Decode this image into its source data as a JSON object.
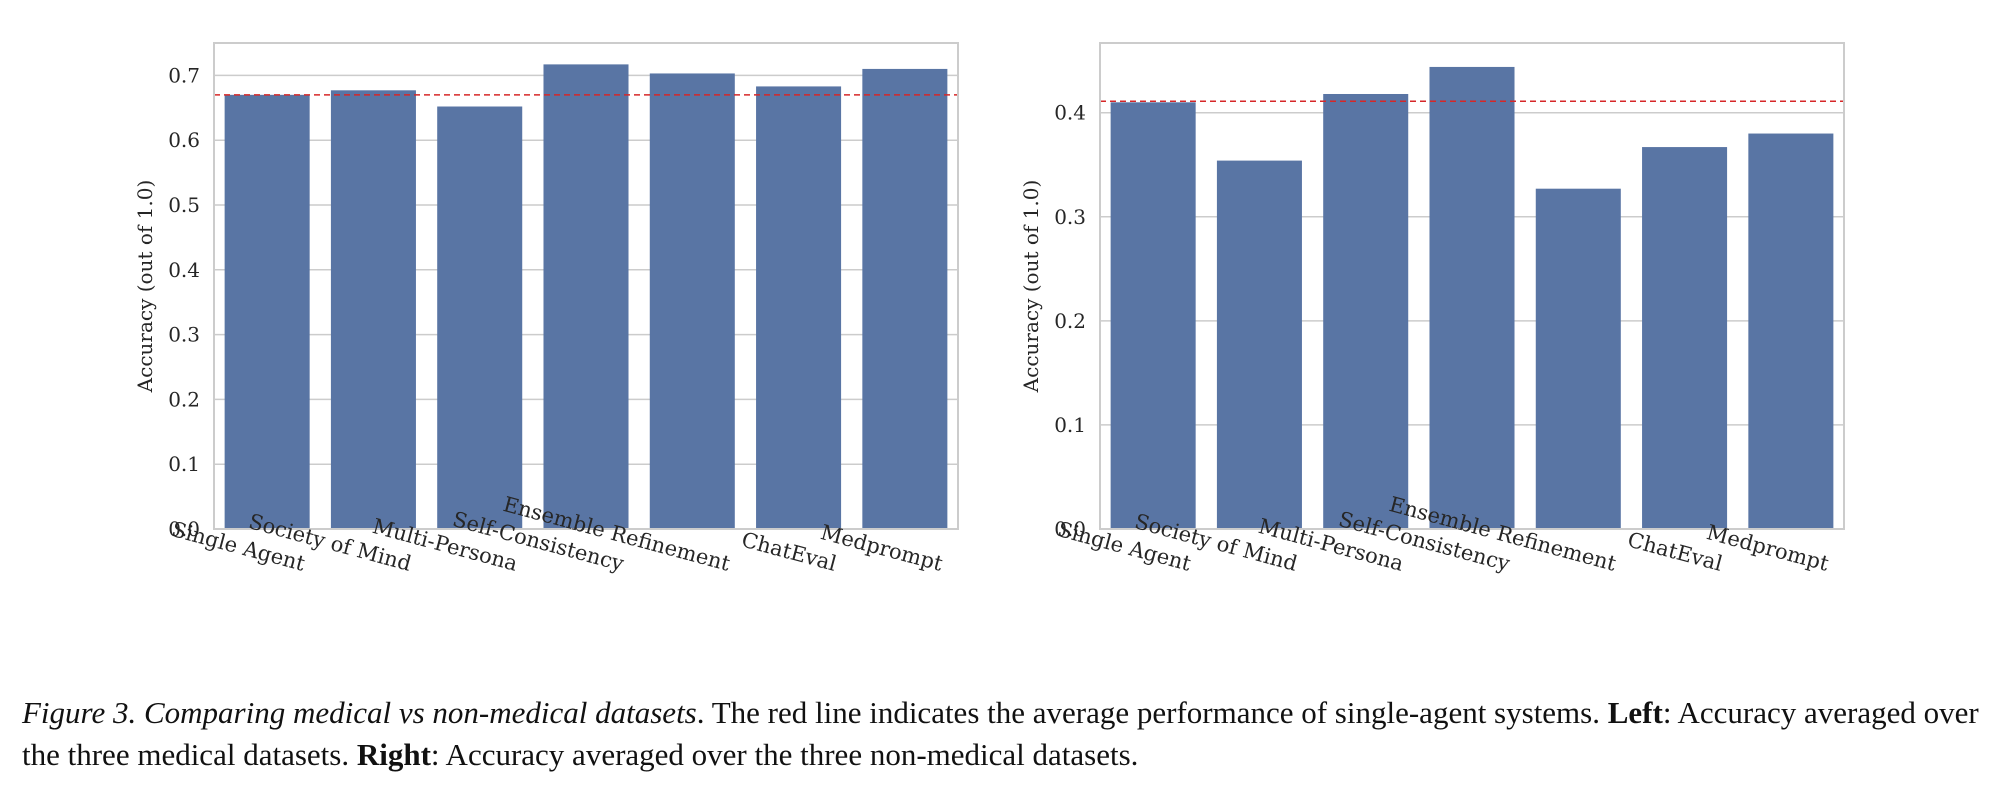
{
  "chart_data": [
    {
      "type": "bar",
      "panel": "Left",
      "categories": [
        "Single Agent",
        "Society of Mind",
        "Multi-Persona",
        "Self-Consistency",
        "Ensemble Refinement",
        "ChatEval",
        "Medprompt"
      ],
      "values": [
        0.67,
        0.677,
        0.652,
        0.717,
        0.703,
        0.683,
        0.71
      ],
      "reference_line": 0.67,
      "ylabel": "Accuracy (out of 1.0)",
      "xlabel": "",
      "ylim": [
        0.0,
        0.75
      ],
      "yticks": [
        0.0,
        0.1,
        0.2,
        0.3,
        0.4,
        0.5,
        0.6,
        0.7
      ],
      "ytick_labels": [
        "0.0",
        "0.1",
        "0.2",
        "0.3",
        "0.4",
        "0.5",
        "0.6",
        "0.7"
      ],
      "grid": "horizontal"
    },
    {
      "type": "bar",
      "panel": "Right",
      "categories": [
        "Single Agent",
        "Society of Mind",
        "Multi-Persona",
        "Self-Consistency",
        "Ensemble Refinement",
        "ChatEval",
        "Medprompt"
      ],
      "values": [
        0.41,
        0.354,
        0.418,
        0.444,
        0.327,
        0.367,
        0.38
      ],
      "reference_line": 0.411,
      "ylabel": "Accuracy (out of 1.0)",
      "xlabel": "",
      "ylim": [
        0.0,
        0.467
      ],
      "yticks": [
        0.0,
        0.1,
        0.2,
        0.3,
        0.4
      ],
      "ytick_labels": [
        "0.0",
        "0.1",
        "0.2",
        "0.3",
        "0.4"
      ],
      "grid": "horizontal"
    }
  ],
  "colors": {
    "bar": "#5975a4",
    "reference_line": "#d62728",
    "grid": "#cccccc",
    "axes_frame": "#cccccc"
  },
  "caption": {
    "figure_label": "Figure 3.",
    "figure_title": "Comparing medical vs non-medical datasets",
    "sentence_1": ". The red line indicates the average performance of single-agent systems. ",
    "left_label": "Left",
    "left_text": ": Accuracy averaged over the three medical datasets. ",
    "right_label": "Right",
    "right_text": ": Accuracy averaged over the three non-medical datasets."
  }
}
